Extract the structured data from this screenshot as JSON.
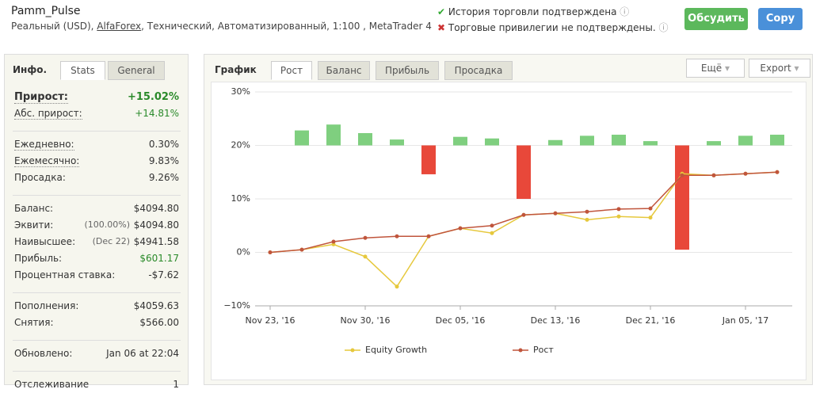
{
  "header": {
    "title": "Pamm_Pulse",
    "subtitle": [
      "Реальный (USD), ",
      "AlfaForex",
      ", Технический, Автоматизированный, 1:100 , MetaTrader 4"
    ],
    "checks": [
      "История торговли подтверждена",
      "Торговые привилегии не подтверждены."
    ],
    "buttons": [
      "Обсудить",
      "Copy"
    ]
  },
  "left_tabs": [
    "Инфо.",
    "Stats",
    "General"
  ],
  "stats": [
    [
      {
        "label": "Прирост:",
        "value": "+15.02%"
      },
      {
        "label": "Абс. прирост:",
        "value": "+14.81%"
      }
    ],
    [
      {
        "label": "Ежедневно:",
        "value": "0.30%"
      },
      {
        "label": "Ежемесячно:",
        "value": "9.83%"
      },
      {
        "label": "Просадка:",
        "value": "9.26%"
      }
    ],
    [
      {
        "label": "Баланс:",
        "value": "$4094.80"
      },
      {
        "label": "Эквити:",
        "note": "(100.00%)",
        "value": "$4094.80"
      },
      {
        "label": "Наивысшее:",
        "note": "(Dec 22)",
        "value": "$4941.58"
      },
      {
        "label": "Прибыль:",
        "value": "$601.17"
      },
      {
        "label": "Процентная ставка:",
        "value": "-$7.62"
      }
    ],
    [
      {
        "label": "Пополнения:",
        "value": "$4059.63"
      },
      {
        "label": "Снятия:",
        "value": "$566.00"
      }
    ],
    [
      {
        "label": "Обновлено:",
        "value": "Jan 06 at 22:04"
      }
    ],
    [
      {
        "label": "Отслеживание",
        "value": "1"
      }
    ]
  ],
  "chart_tabs": [
    "График",
    "Рост",
    "Баланс",
    "Прибыль",
    "Просадка"
  ],
  "chart_menus": [
    "Ещё",
    "Export"
  ],
  "chart_data": {
    "type": "line",
    "categories": [
      "Nov 23, '16",
      null,
      null,
      "Nov 30, '16",
      null,
      null,
      "Dec 05, '16",
      null,
      null,
      "Dec 13, '16",
      null,
      null,
      "Dec 21, '16",
      null,
      null,
      "Jan 05, '17",
      null
    ],
    "series": [
      {
        "name": "Equity Growth",
        "color": "#e6c83c",
        "values": [
          0,
          0.5,
          1.5,
          -0.8,
          -6.4,
          3.0,
          4.5,
          3.6,
          7.0,
          7.3,
          6.1,
          6.7,
          6.5,
          14.7,
          14.4,
          14.7,
          15.0
        ]
      },
      {
        "name": "Рост",
        "color": "#c0553c",
        "values": [
          0,
          0.5,
          2.0,
          2.7,
          3.0,
          3.0,
          4.5,
          5.0,
          7.0,
          7.3,
          7.6,
          8.1,
          8.2,
          14.4,
          14.4,
          14.7,
          15.0
        ]
      }
    ],
    "bars": {
      "base": 20,
      "positive_color": "#7fcf7f",
      "negative_color": "#e8483a",
      "values": [
        null,
        22.8,
        23.9,
        22.3,
        21.1,
        14.6,
        21.6,
        21.3,
        10.0,
        21.0,
        21.8,
        22.0,
        20.8,
        0.5,
        20.8,
        21.8,
        22.0
      ]
    },
    "ylim": [
      -10,
      30
    ],
    "yticks": [
      {
        "value": -10,
        "label": "−10%"
      },
      {
        "value": 0,
        "label": "0%"
      },
      {
        "value": 10,
        "label": "10%"
      },
      {
        "value": 20,
        "label": "20%"
      },
      {
        "value": 30,
        "label": "30%"
      }
    ],
    "grid": true
  }
}
